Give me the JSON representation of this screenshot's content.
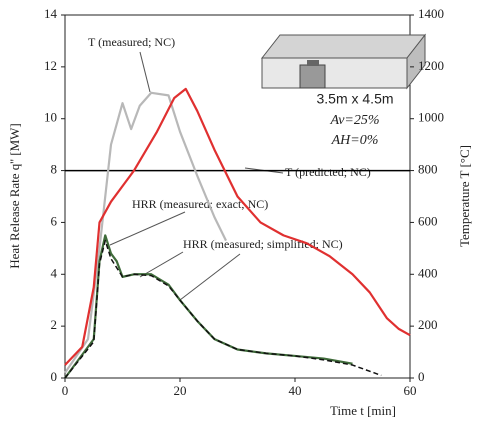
{
  "chart_data": {
    "type": "line",
    "xlabel": "Time t [min]",
    "ylabel": "Heat Release Rate q'' [MW]",
    "y2label": "Temperature T [°C]",
    "xlim": [
      0,
      60
    ],
    "xticks": [
      0,
      20,
      40,
      60
    ],
    "ylim": [
      0,
      14
    ],
    "yticks": [
      0,
      2,
      4,
      6,
      8,
      10,
      12,
      14
    ],
    "y2lim": [
      0,
      1400
    ],
    "y2ticks": [
      0,
      200,
      400,
      600,
      800,
      1000,
      1200,
      1400
    ],
    "hline": 8,
    "annotations": [
      "T (measured; NC)",
      "T (predicted; NC)",
      "HRR (measured; exact; NC)",
      "HRR (measured; simplified; NC)",
      "3.5m x 4.5m",
      "Av=25%",
      "AH=0%"
    ],
    "series": [
      {
        "name": "T (measured; NC)",
        "color": "#b8b8b8",
        "axis": "y2",
        "x": [
          0,
          4,
          6,
          8,
          10,
          11.5,
          13,
          15,
          18,
          20,
          23,
          26,
          28
        ],
        "values": [
          20,
          150,
          500,
          900,
          1060,
          960,
          1050,
          1100,
          1090,
          950,
          780,
          620,
          530
        ]
      },
      {
        "name": "T (predicted; NC)",
        "color": "#e03030",
        "axis": "y2",
        "x": [
          0,
          3,
          5,
          6,
          8,
          12,
          16,
          19,
          21,
          23,
          26,
          30,
          34,
          38,
          42,
          46,
          50,
          53,
          56,
          58,
          60
        ],
        "values": [
          50,
          120,
          350,
          600,
          680,
          800,
          950,
          1080,
          1115,
          1030,
          880,
          700,
          600,
          550,
          520,
          470,
          400,
          330,
          230,
          190,
          165
        ]
      },
      {
        "name": "HRR (measured; exact; NC)",
        "color": "#3f6b3a",
        "x": [
          0,
          5,
          6,
          7,
          8,
          9,
          10,
          12,
          15,
          18,
          20,
          23,
          26,
          30,
          35,
          40,
          45,
          50
        ],
        "values": [
          0,
          1.5,
          4.5,
          5.5,
          4.8,
          4.5,
          3.9,
          4.0,
          4.0,
          3.6,
          3.0,
          2.2,
          1.5,
          1.1,
          0.95,
          0.85,
          0.75,
          0.55
        ]
      },
      {
        "name": "HRR (measured; simplified; NC)",
        "color": "#111111",
        "dash": true,
        "x": [
          0,
          5,
          6,
          7,
          8,
          10,
          12,
          15,
          18,
          20,
          23,
          26,
          30,
          35,
          40,
          45,
          50,
          55
        ],
        "values": [
          0,
          1.4,
          4.4,
          5.3,
          4.6,
          3.9,
          4.0,
          3.95,
          3.55,
          3.0,
          2.2,
          1.5,
          1.1,
          0.95,
          0.85,
          0.7,
          0.5,
          0.1
        ]
      }
    ]
  }
}
